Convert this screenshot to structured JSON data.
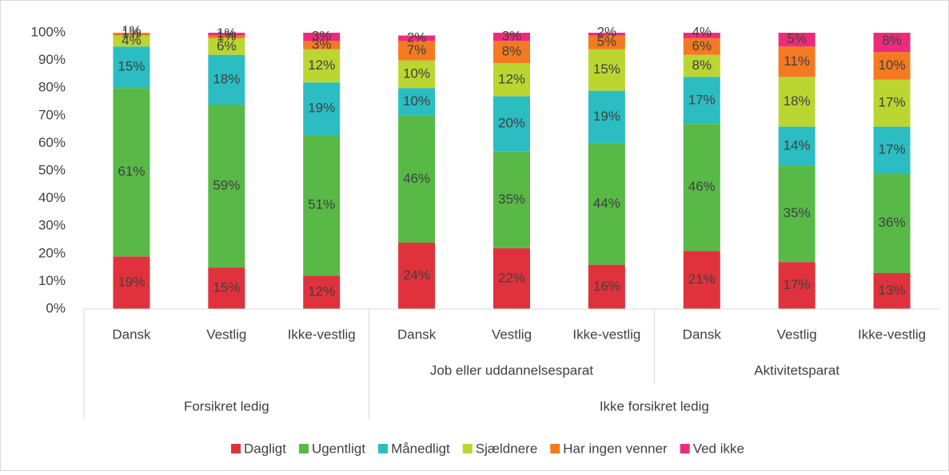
{
  "chart_data": {
    "type": "stacked_bar",
    "categories": [
      "Dansk",
      "Vestlig",
      "Ikke-vestlig",
      "Dansk",
      "Vestlig",
      "Ikke-vestlig",
      "Dansk",
      "Vestlig",
      "Ikke-vestlig"
    ],
    "subgroups": [
      null,
      null,
      null,
      "Job eller uddannelsesparat",
      "Job eller uddannelsesparat",
      "Job eller uddannelsesparat",
      "Aktivitetsparat",
      "Aktivitetsparat",
      "Aktivitetsparat"
    ],
    "groups": [
      "Forsikret ledig",
      "Forsikret ledig",
      "Forsikret ledig",
      "Ikke forsikret ledig",
      "Ikke forsikret ledig",
      "Ikke forsikret ledig",
      "Ikke forsikret ledig",
      "Ikke forsikret ledig",
      "Ikke forsikret ledig"
    ],
    "series": [
      {
        "name": "Dagligt",
        "color": "#e0323c",
        "values": [
          19,
          15,
          12,
          24,
          22,
          16,
          21,
          17,
          13
        ],
        "value_labels": [
          "19%",
          "15%",
          "12%",
          "24%",
          "22%",
          "16%",
          "21%",
          "17%",
          "13%"
        ]
      },
      {
        "name": "Ugentligt",
        "color": "#58b947",
        "values": [
          61,
          59,
          51,
          46,
          35,
          44,
          46,
          35,
          36
        ],
        "value_labels": [
          "61%",
          "59%",
          "51%",
          "46%",
          "35%",
          "44%",
          "46%",
          "35%",
          "36%"
        ]
      },
      {
        "name": "Månedligt",
        "color": "#2bbdc1",
        "values": [
          15,
          18,
          19,
          10,
          20,
          19,
          17,
          14,
          17
        ],
        "value_labels": [
          "15%",
          "18%",
          "19%",
          "10%",
          "20%",
          "19%",
          "17%",
          "14%",
          "17%"
        ]
      },
      {
        "name": "Sjældnere",
        "color": "#bbd631",
        "values": [
          4,
          6,
          12,
          10,
          12,
          15,
          8,
          18,
          17
        ],
        "value_labels": [
          "4%",
          "6%",
          "12%",
          "10%",
          "12%",
          "15%",
          "8%",
          "18%",
          "17%"
        ]
      },
      {
        "name": "Har ingen venner",
        "color": "#f47a22",
        "values": [
          1,
          1,
          3,
          7,
          8,
          5,
          6,
          11,
          10
        ],
        "value_labels": [
          "1%",
          "1%",
          "3%",
          "7%",
          "8%",
          "5%",
          "6%",
          "11%",
          "10%"
        ]
      },
      {
        "name": "Ved ikke",
        "color": "#ee2b7b",
        "values": [
          1,
          1,
          3,
          2,
          3,
          2,
          4,
          5,
          8
        ],
        "value_labels": [
          "1%",
          "1%",
          "3%",
          "2%",
          "3%",
          "2%",
          "4%",
          "5%",
          "8%"
        ]
      }
    ],
    "ylim": [
      0,
      100
    ],
    "yticks": [
      {
        "value": 0,
        "label": "0%"
      },
      {
        "value": 10,
        "label": "10%"
      },
      {
        "value": 20,
        "label": "20%"
      },
      {
        "value": 30,
        "label": "30%"
      },
      {
        "value": 40,
        "label": "40%"
      },
      {
        "value": 50,
        "label": "50%"
      },
      {
        "value": 60,
        "label": "60%"
      },
      {
        "value": 70,
        "label": "70%"
      },
      {
        "value": 80,
        "label": "80%"
      },
      {
        "value": 90,
        "label": "90%"
      },
      {
        "value": 100,
        "label": "100%"
      }
    ],
    "grid": false,
    "legend": "bottom"
  }
}
